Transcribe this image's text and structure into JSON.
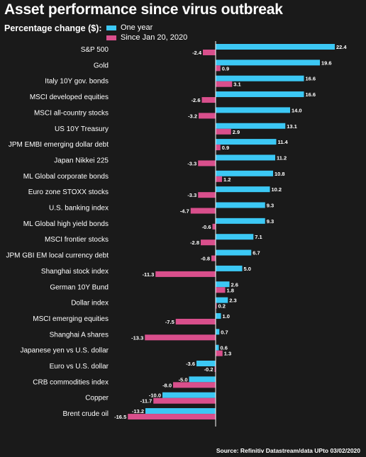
{
  "header": {
    "title": "Asset performance since virus outbreak",
    "subtitle": "Percentage change ($):"
  },
  "source": "Source: Refinitiv Datastream/data UPto 03/02/2020",
  "colors": {
    "background": "#1a1a1a",
    "one_year": "#3cc8f4",
    "since_jan": "#d94f8c",
    "axis": "#ffffff"
  },
  "chart_data": {
    "type": "bar",
    "orientation": "horizontal",
    "title": "Asset performance since virus outbreak",
    "categories": [
      "S&P 500",
      "Gold",
      "Italy 10Y gov. bonds",
      "MSCI developed equities",
      "MSCI all-country stocks",
      "US 10Y Treasury",
      "JPM EMBI emerging dollar debt",
      "Japan Nikkei 225",
      "ML Global corporate bonds",
      "Euro zone STOXX stocks",
      "U.S. banking index",
      "ML Global high yield bonds",
      "MSCI frontier stocks",
      "JPM GBI EM local currency debt",
      "Shanghai stock index",
      "German 10Y Bund",
      "Dollar index",
      "MSCI emerging equities",
      "Shanghai A shares",
      "Japanese yen vs U.S. dollar",
      "Euro vs U.S. dollar",
      "CRB commodities index",
      "Copper",
      "Brent crude oil"
    ],
    "series": [
      {
        "name": "One year",
        "values": [
          22.4,
          19.6,
          16.6,
          16.6,
          14.0,
          13.1,
          11.4,
          11.2,
          10.8,
          10.2,
          9.3,
          9.3,
          7.1,
          6.7,
          5.0,
          2.6,
          2.3,
          1.0,
          0.7,
          0.6,
          -3.6,
          -5.0,
          -10.0,
          -13.2
        ],
        "labels": [
          "22.4",
          "19.6",
          "16.6",
          "16.6",
          "14.0",
          "13.1",
          "11.4",
          "11.2",
          "10.8",
          "10.2",
          "9.3",
          "9.3",
          "7.1",
          "6.7",
          "5.0",
          "2.6",
          "2.3",
          "1.0",
          "0.7",
          "0.6",
          "-3.6",
          "-5.0",
          "-10.0",
          "-13.2"
        ]
      },
      {
        "name": "Since Jan 20, 2020",
        "values": [
          -2.4,
          0.9,
          3.1,
          -2.6,
          -3.2,
          2.9,
          0.9,
          -3.3,
          1.2,
          -3.3,
          -4.7,
          -0.6,
          -2.8,
          -0.8,
          -11.3,
          1.8,
          0.2,
          -7.5,
          -13.3,
          1.3,
          -0.2,
          -8.0,
          -11.7,
          -16.5
        ],
        "labels": [
          "-2.4",
          "0.9",
          "3.1",
          "-2.6",
          "-3.2",
          "2.9",
          "0.9",
          "-3.3",
          "1.2",
          "-3.3",
          "-4.7",
          "-0.6",
          "-2.8",
          "-0.8",
          "-11.3",
          "1.8",
          "0.2",
          "-7.5",
          "-13.3",
          "1.3",
          "-0.2",
          "-8.0",
          "-11.7",
          "-16.5"
        ]
      }
    ],
    "xlim": [
      -16.5,
      22.4
    ],
    "legend_position": "top-left",
    "grid": false
  }
}
